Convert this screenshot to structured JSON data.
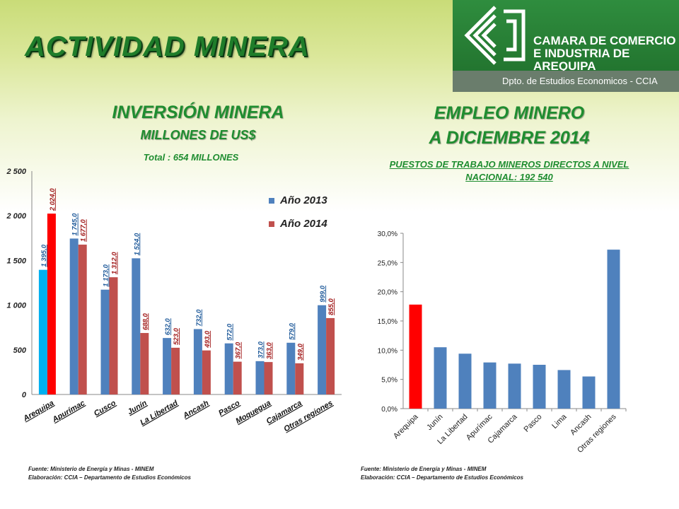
{
  "header": {
    "title": "ACTIVIDAD MINERA",
    "org_line1": "CAMARA DE COMERCIO",
    "org_line2": "E INDUSTRIA DE",
    "org_line3": "AREQUIPA",
    "dept": "Dpto. de Estudios Economicos - CCIA",
    "logo_icon": "ccia-logo-icon"
  },
  "colors": {
    "accent_green": "#1f8d30",
    "banner_green": "#2f8d3e",
    "red": "#ff0000",
    "blue": "#4f81bd",
    "dark_red": "#c0504d",
    "light_blue": "#00b0f0"
  },
  "left": {
    "title": "INVERSIÓN MINERA",
    "subtitle": "MILLONES DE US$",
    "total": "Total : 654 MILLONES",
    "source": "Fuente: Ministerio de Energía y Minas - MINEM",
    "credit": "Elaboración: CCIA – Departamento de Estudios Económicos"
  },
  "right": {
    "title_line1": "EMPLEO MINERO",
    "title_line2": "A DICIEMBRE 2014",
    "subtitle_line1": "PUESTOS DE TRABAJO MINEROS DIRECTOS A NIVEL",
    "subtitle_line2": "NACIONAL: 192 540",
    "source": "Fuente: Ministerio de Energía y Minas - MINEM",
    "credit": "Elaboración: CCIA – Departamento de Estudios Económicos"
  },
  "chart_data": [
    {
      "type": "bar",
      "categories": [
        "Arequipa",
        "Apurímac",
        "Cusco",
        "Junín",
        "La Libertad",
        "Ancash",
        "Pasco",
        "Moquegua",
        "Cajamarca",
        "Otras regiones"
      ],
      "series": [
        {
          "name": "Año 2013",
          "values": [
            1395,
            1745,
            1173,
            1524,
            632,
            732,
            572,
            373,
            579,
            999
          ],
          "labels": [
            "1 395,0",
            "1 745,0",
            "1 173,0",
            "1 524,0",
            "632,0",
            "732,0",
            "572,0",
            "373,0",
            "579,0",
            "999,0"
          ]
        },
        {
          "name": "Año 2014",
          "values": [
            2024,
            1677,
            1312,
            688,
            523,
            493,
            367,
            363,
            349,
            855
          ],
          "labels": [
            "2 024,0",
            "1 677,0",
            "1 312,0",
            "688,0",
            "523,0",
            "493,0",
            "367,0",
            "363,0",
            "349,0",
            "855,0"
          ]
        }
      ],
      "ylim": [
        0,
        2500
      ],
      "yticks": [
        0,
        500,
        1000,
        1500,
        2000,
        2500
      ],
      "ytick_labels": [
        "0",
        "500",
        "1 000",
        "1 500",
        "2 000",
        "2 500"
      ],
      "highlight_category": "Arequipa",
      "legend_position": "top-right"
    },
    {
      "type": "bar",
      "categories": [
        "Arequipa",
        "Junín",
        "La Libertad",
        "Apurímac",
        "Cajamarca",
        "Pasco",
        "Lima",
        "Ancash",
        "Otras regiones"
      ],
      "values": [
        17.8,
        10.5,
        9.4,
        7.9,
        7.7,
        7.5,
        6.6,
        5.5,
        27.2
      ],
      "ylim": [
        0,
        30
      ],
      "yticks": [
        0,
        5,
        10,
        15,
        20,
        25,
        30
      ],
      "ytick_labels": [
        "0,0%",
        "5,0%",
        "10,0%",
        "15,0%",
        "20,0%",
        "25,0%",
        "30,0%"
      ],
      "highlight_category": "Arequipa"
    }
  ]
}
